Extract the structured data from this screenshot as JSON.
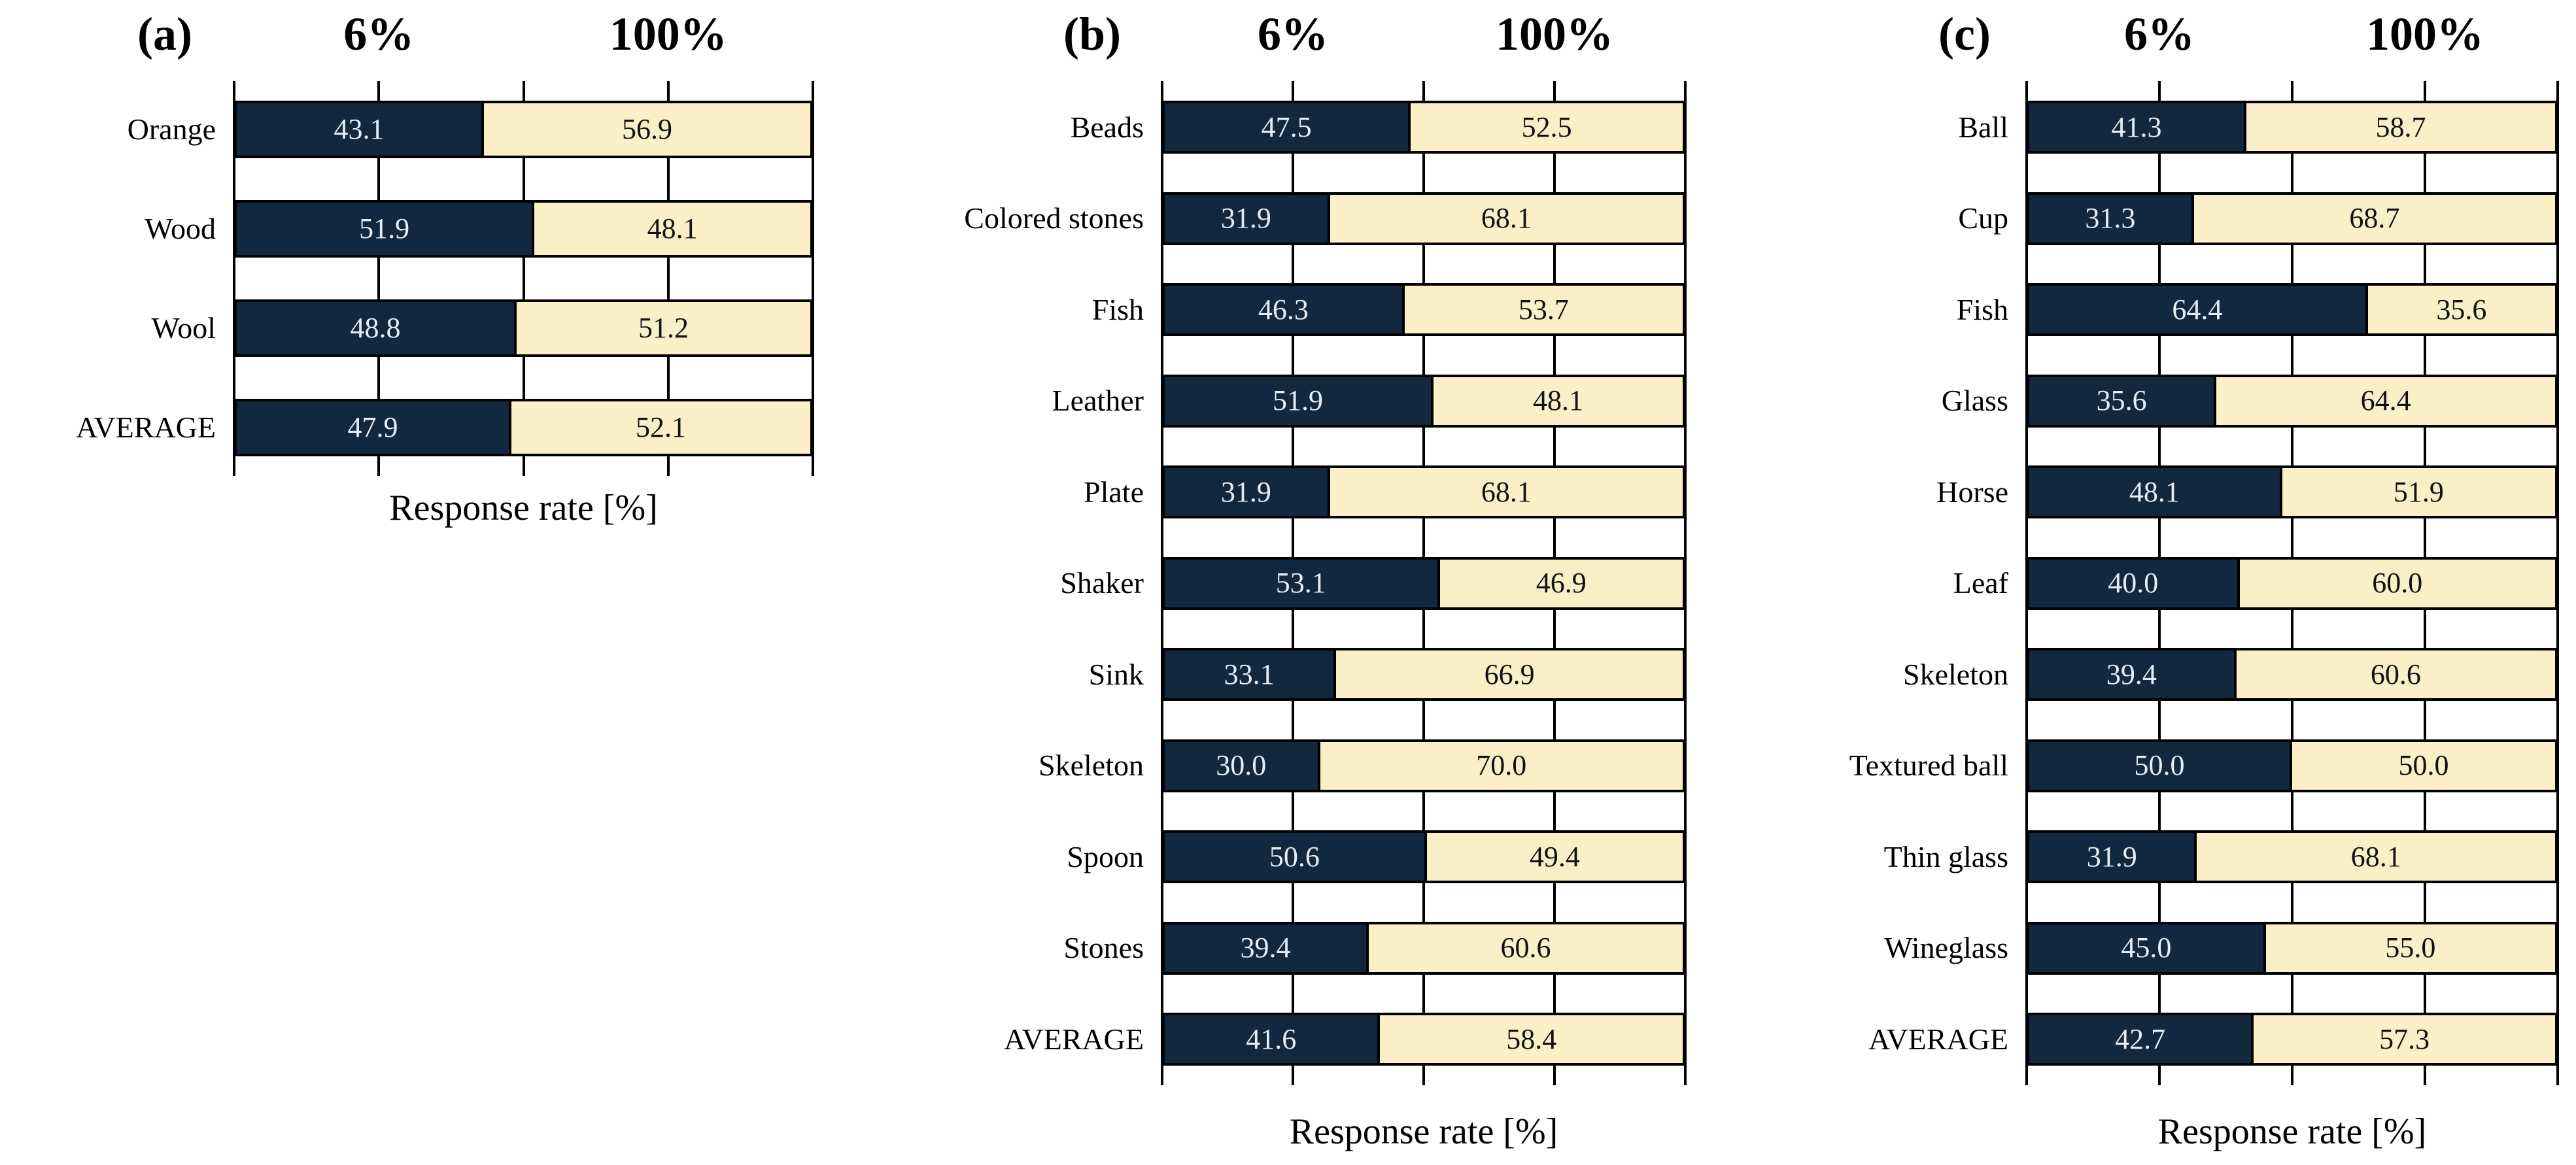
{
  "figure": {
    "background": "#ffffff"
  },
  "colors": {
    "bar_6pct": "#12283e",
    "bar_100pct": "#faefc7",
    "line": "#000000",
    "value_text_on_dark": "#e8edf3",
    "value_text_on_light": "#111111",
    "label_text": "#000000"
  },
  "chart_data": [
    {
      "type": "bar",
      "orientation": "horizontal",
      "stacked": true,
      "panel_label": "(a)",
      "xlabel": "Response rate [%]",
      "xlim": [
        0,
        100
      ],
      "xticks": [
        0,
        25,
        50,
        75,
        100
      ],
      "tick_labels_visible": false,
      "legend_position": "column-headers-above",
      "categories": [
        "Orange",
        "Wood",
        "Wool",
        "AVERAGE"
      ],
      "series": [
        {
          "name": "6%",
          "color": "#12283e",
          "values": [
            43.1,
            51.9,
            48.8,
            47.9
          ],
          "values_display": [
            "43.1",
            "51.9",
            "48.8",
            "47.9"
          ]
        },
        {
          "name": "100%",
          "color": "#faefc7",
          "values": [
            56.9,
            48.1,
            51.2,
            52.1
          ],
          "values_display": [
            "56.9",
            "48.1",
            "51.2",
            "52.1"
          ]
        }
      ]
    },
    {
      "type": "bar",
      "orientation": "horizontal",
      "stacked": true,
      "panel_label": "(b)",
      "xlabel": "Response rate [%]",
      "xlim": [
        0,
        100
      ],
      "xticks": [
        0,
        25,
        50,
        75,
        100
      ],
      "tick_labels_visible": false,
      "legend_position": "column-headers-above",
      "categories": [
        "Beads",
        "Colored stones",
        "Fish",
        "Leather",
        "Plate",
        "Shaker",
        "Sink",
        "Skeleton",
        "Spoon",
        "Stones",
        "AVERAGE"
      ],
      "series": [
        {
          "name": "6%",
          "color": "#12283e",
          "values": [
            47.5,
            31.9,
            46.3,
            51.9,
            31.9,
            53.1,
            33.1,
            30.0,
            50.6,
            39.4,
            41.6
          ],
          "values_display": [
            "47.5",
            "31.9",
            "46.3",
            "51.9",
            "31.9",
            "53.1",
            "33.1",
            "30.0",
            "50.6",
            "39.4",
            "41.6"
          ]
        },
        {
          "name": "100%",
          "color": "#faefc7",
          "values": [
            52.5,
            68.1,
            53.7,
            48.1,
            68.1,
            46.9,
            66.9,
            70.0,
            49.4,
            60.6,
            58.4
          ],
          "values_display": [
            "52.5",
            "68.1",
            "53.7",
            "48.1",
            "68.1",
            "46.9",
            "66.9",
            "70.0",
            "49.4",
            "60.6",
            "58.4"
          ]
        }
      ]
    },
    {
      "type": "bar",
      "orientation": "horizontal",
      "stacked": true,
      "panel_label": "(c)",
      "xlabel": "Response rate [%]",
      "xlim": [
        0,
        100
      ],
      "xticks": [
        0,
        25,
        50,
        75,
        100
      ],
      "tick_labels_visible": false,
      "legend_position": "column-headers-above",
      "categories": [
        "Ball",
        "Cup",
        "Fish",
        "Glass",
        "Horse",
        "Leaf",
        "Skeleton",
        "Textured ball",
        "Thin glass",
        "Wineglass",
        "AVERAGE"
      ],
      "series": [
        {
          "name": "6%",
          "color": "#12283e",
          "values": [
            41.3,
            31.3,
            64.4,
            35.6,
            48.1,
            40.0,
            39.4,
            50.0,
            31.9,
            45.0,
            42.7
          ],
          "values_display": [
            "41.3",
            "31.3",
            "64.4",
            "35.6",
            "48.1",
            "40.0",
            "39.4",
            "50.0",
            "31.9",
            "45.0",
            "42.7"
          ]
        },
        {
          "name": "100%",
          "color": "#faefc7",
          "values": [
            58.7,
            68.7,
            35.6,
            64.4,
            51.9,
            60.0,
            60.6,
            50.0,
            68.1,
            55.0,
            57.3
          ],
          "values_display": [
            "58.7",
            "68.7",
            "35.6",
            "64.4",
            "51.9",
            "60.0",
            "60.6",
            "50.0",
            "68.1",
            "55.0",
            "57.3"
          ]
        }
      ]
    }
  ]
}
